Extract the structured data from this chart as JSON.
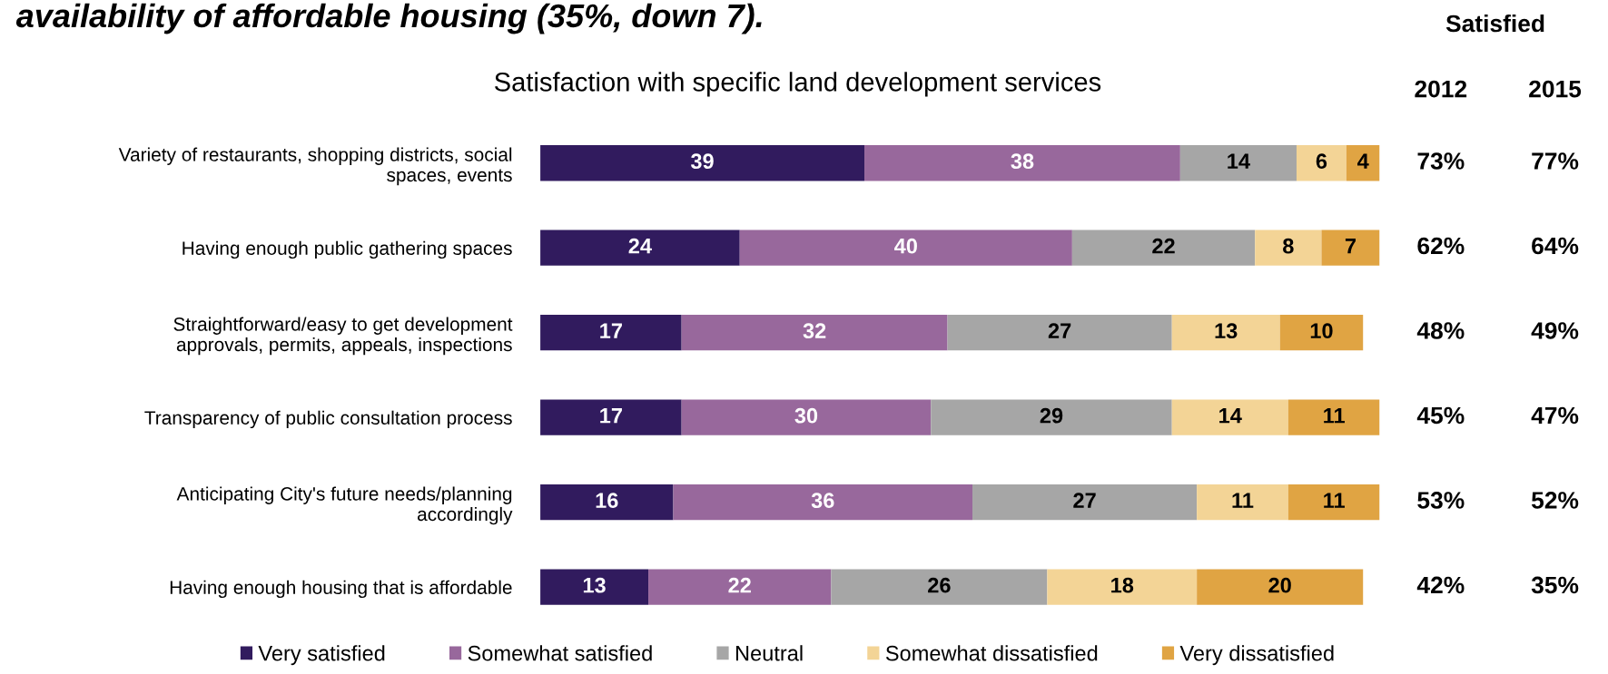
{
  "chart_data": {
    "type": "bar",
    "orientation": "horizontal",
    "stacked": true,
    "title": "Satisfaction with specific land development services",
    "categories": [
      "Variety of restaurants, shopping districts, social\nspaces, events",
      "Having enough public gathering spaces",
      "Straightforward/easy to get development\napprovals, permits, appeals, inspections",
      "Transparency of public consultation process",
      "Anticipating City's future needs/planning\naccordingly",
      "Having enough housing that is affordable"
    ],
    "series": [
      {
        "name": "Very satisfied",
        "color": "#311b5e",
        "values": [
          39,
          24,
          17,
          17,
          16,
          13
        ]
      },
      {
        "name": "Somewhat satisfied",
        "color": "#98689c",
        "values": [
          38,
          40,
          32,
          30,
          36,
          22
        ]
      },
      {
        "name": "Neutral",
        "color": "#a6a6a6",
        "values": [
          14,
          22,
          27,
          29,
          27,
          26
        ]
      },
      {
        "name": "Somewhat dissatisfied",
        "color": "#f3d496",
        "values": [
          6,
          8,
          13,
          14,
          11,
          18
        ]
      },
      {
        "name": "Very dissatisfied",
        "color": "#e0a443",
        "values": [
          4,
          7,
          10,
          11,
          11,
          20
        ]
      }
    ],
    "data_labels": true,
    "legend": "bottom",
    "grid": false,
    "annotations": [
      "availability of affordable housing (35%, down 7).",
      "Satisfied",
      "2012",
      "2015",
      "73%",
      "77%",
      "62%",
      "64%",
      "48%",
      "49%",
      "45%",
      "47%",
      "53%",
      "52%",
      "42%",
      "35%"
    ]
  }
}
